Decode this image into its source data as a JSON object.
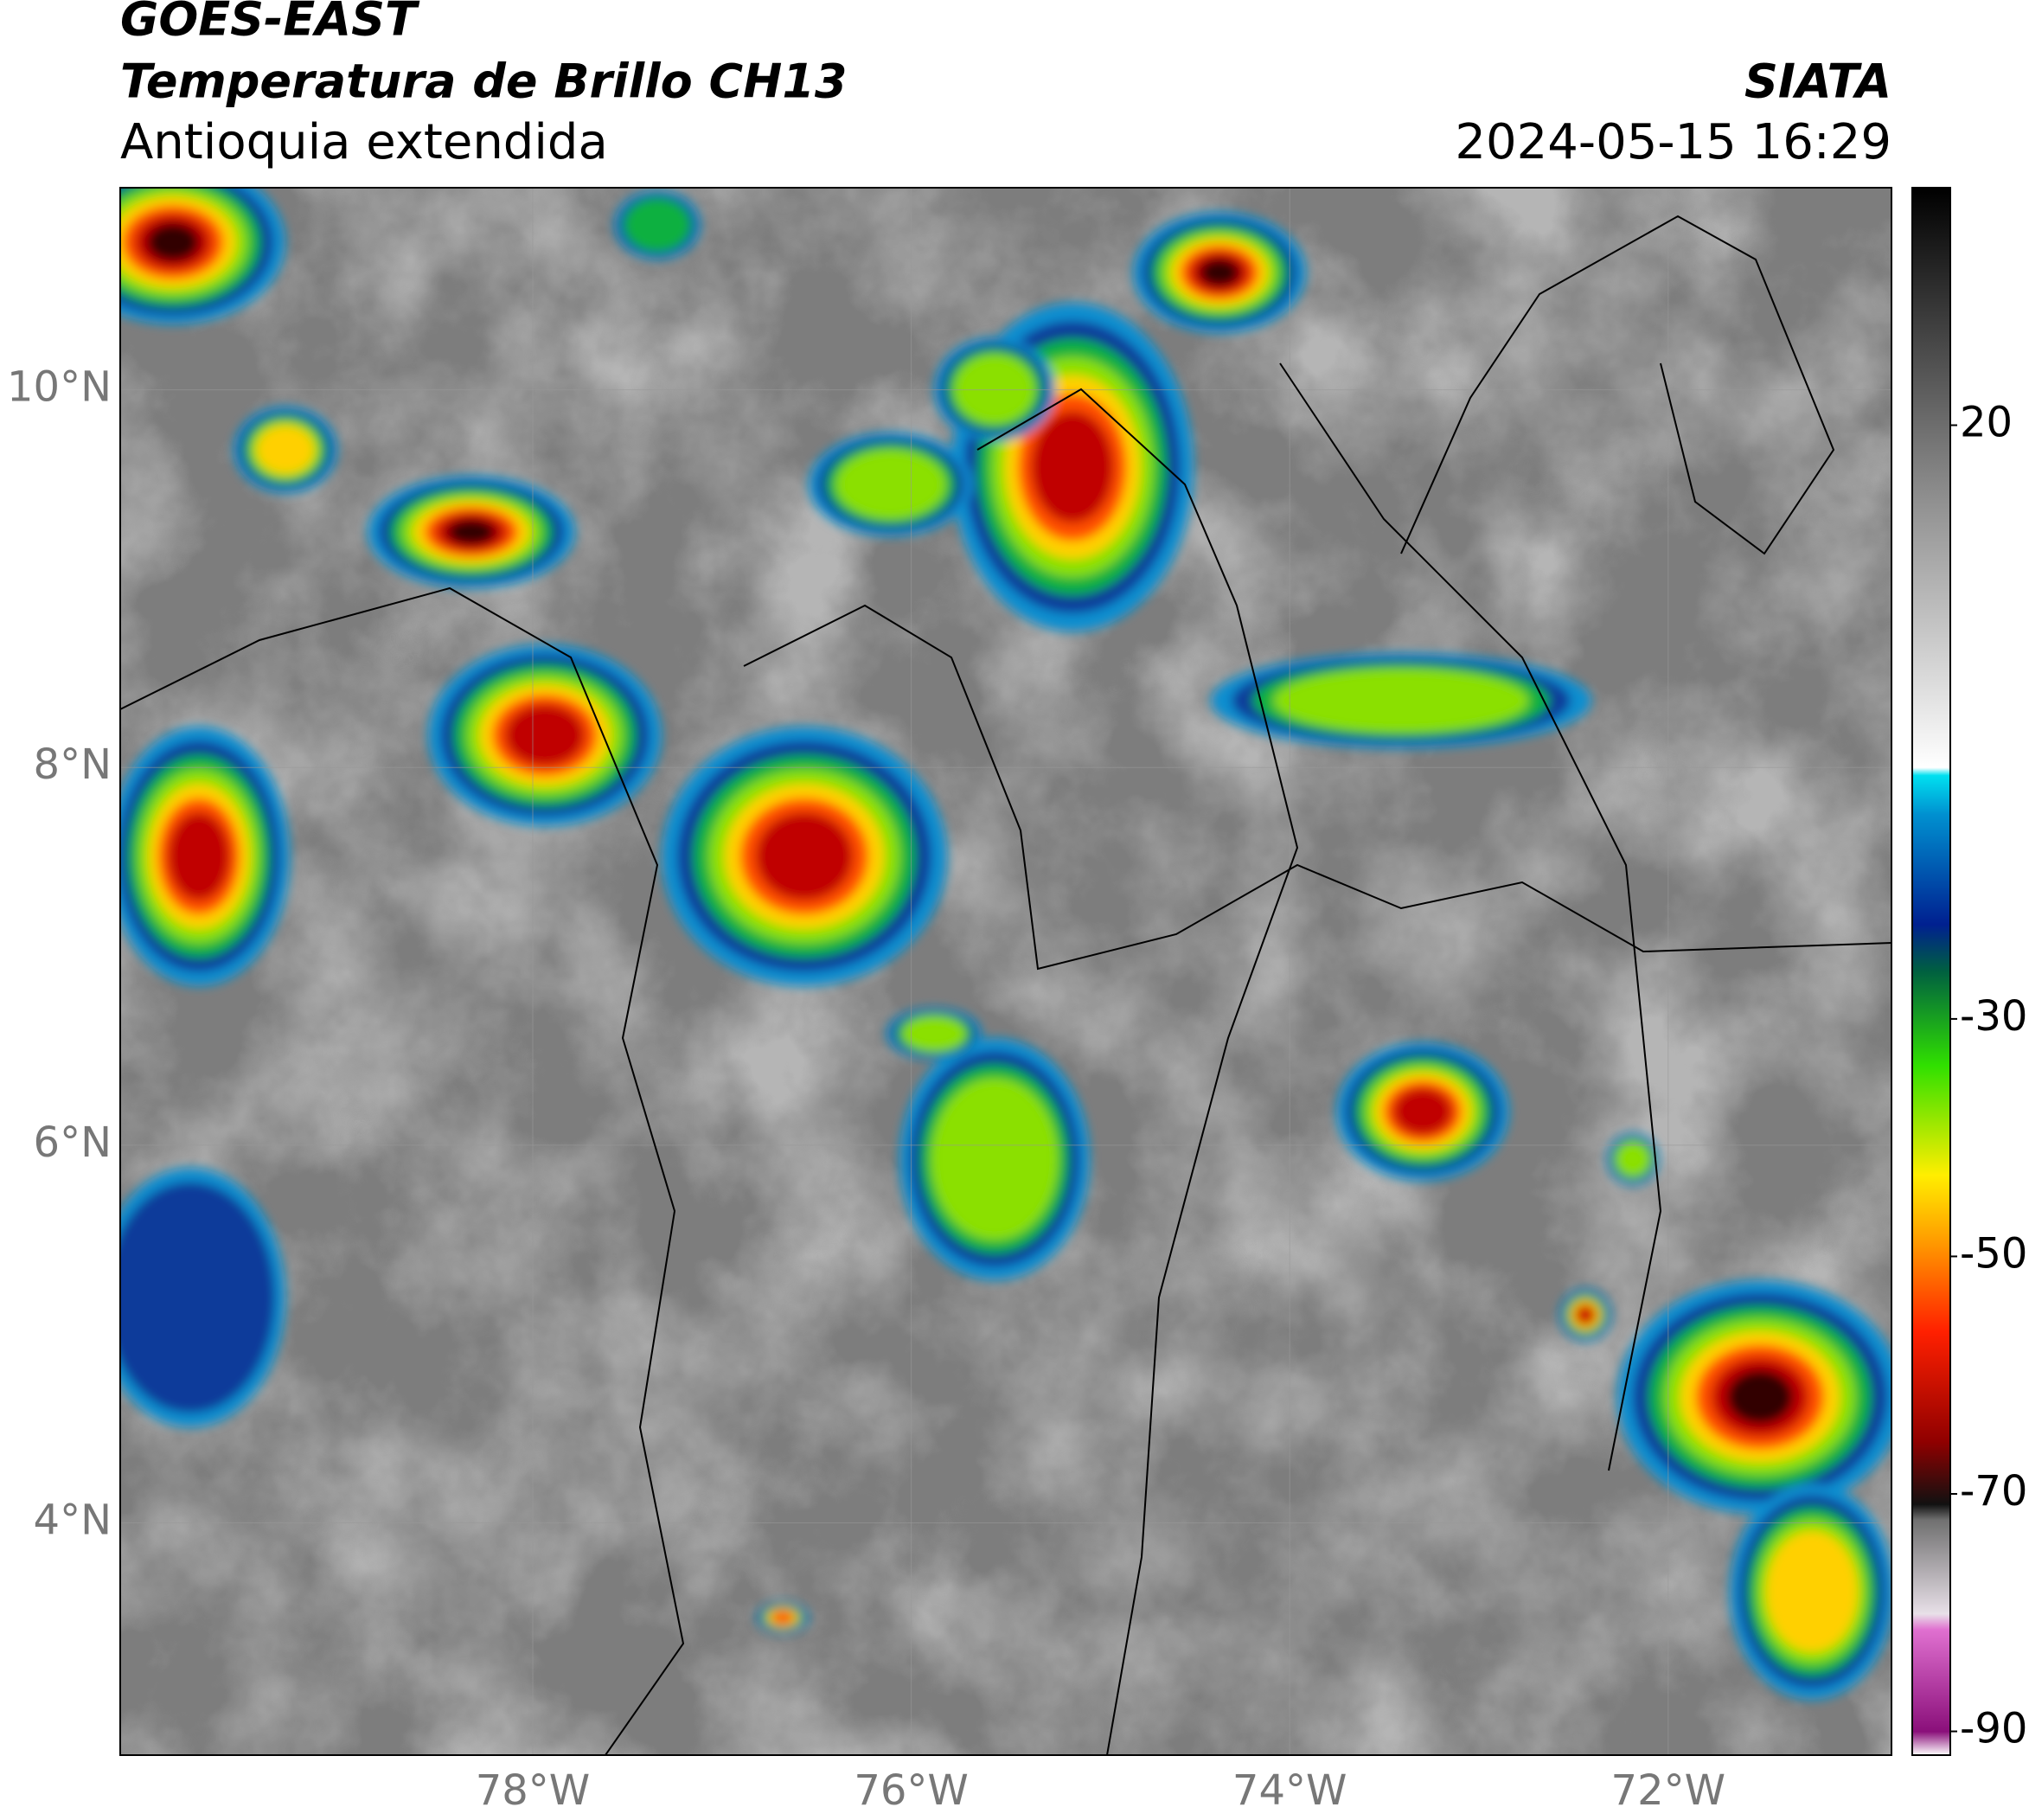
{
  "header": {
    "title": "GOES-EAST",
    "subtitle": "Temperatura de Brillo CH13",
    "region": "Antioquia extendida",
    "source": "SIATA",
    "datetime": "2024-05-15 16:29"
  },
  "map": {
    "lat_lim": [
      2.77,
      11.07
    ],
    "lon_lim": [
      -80.18,
      -70.82
    ],
    "lat_ticks": [
      {
        "value": 10,
        "label": "10°N"
      },
      {
        "value": 8,
        "label": "8°N"
      },
      {
        "value": 6,
        "label": "6°N"
      },
      {
        "value": 4,
        "label": "4°N"
      }
    ],
    "lon_ticks": [
      {
        "value": -78,
        "label": "78°W"
      },
      {
        "value": -76,
        "label": "76°W"
      },
      {
        "value": -74,
        "label": "74°W"
      },
      {
        "value": -72,
        "label": "72°W"
      }
    ]
  },
  "colorbar": {
    "lim": [
      -92,
      40
    ],
    "ticks": [
      20,
      -30,
      -50,
      -70,
      -90
    ]
  }
}
